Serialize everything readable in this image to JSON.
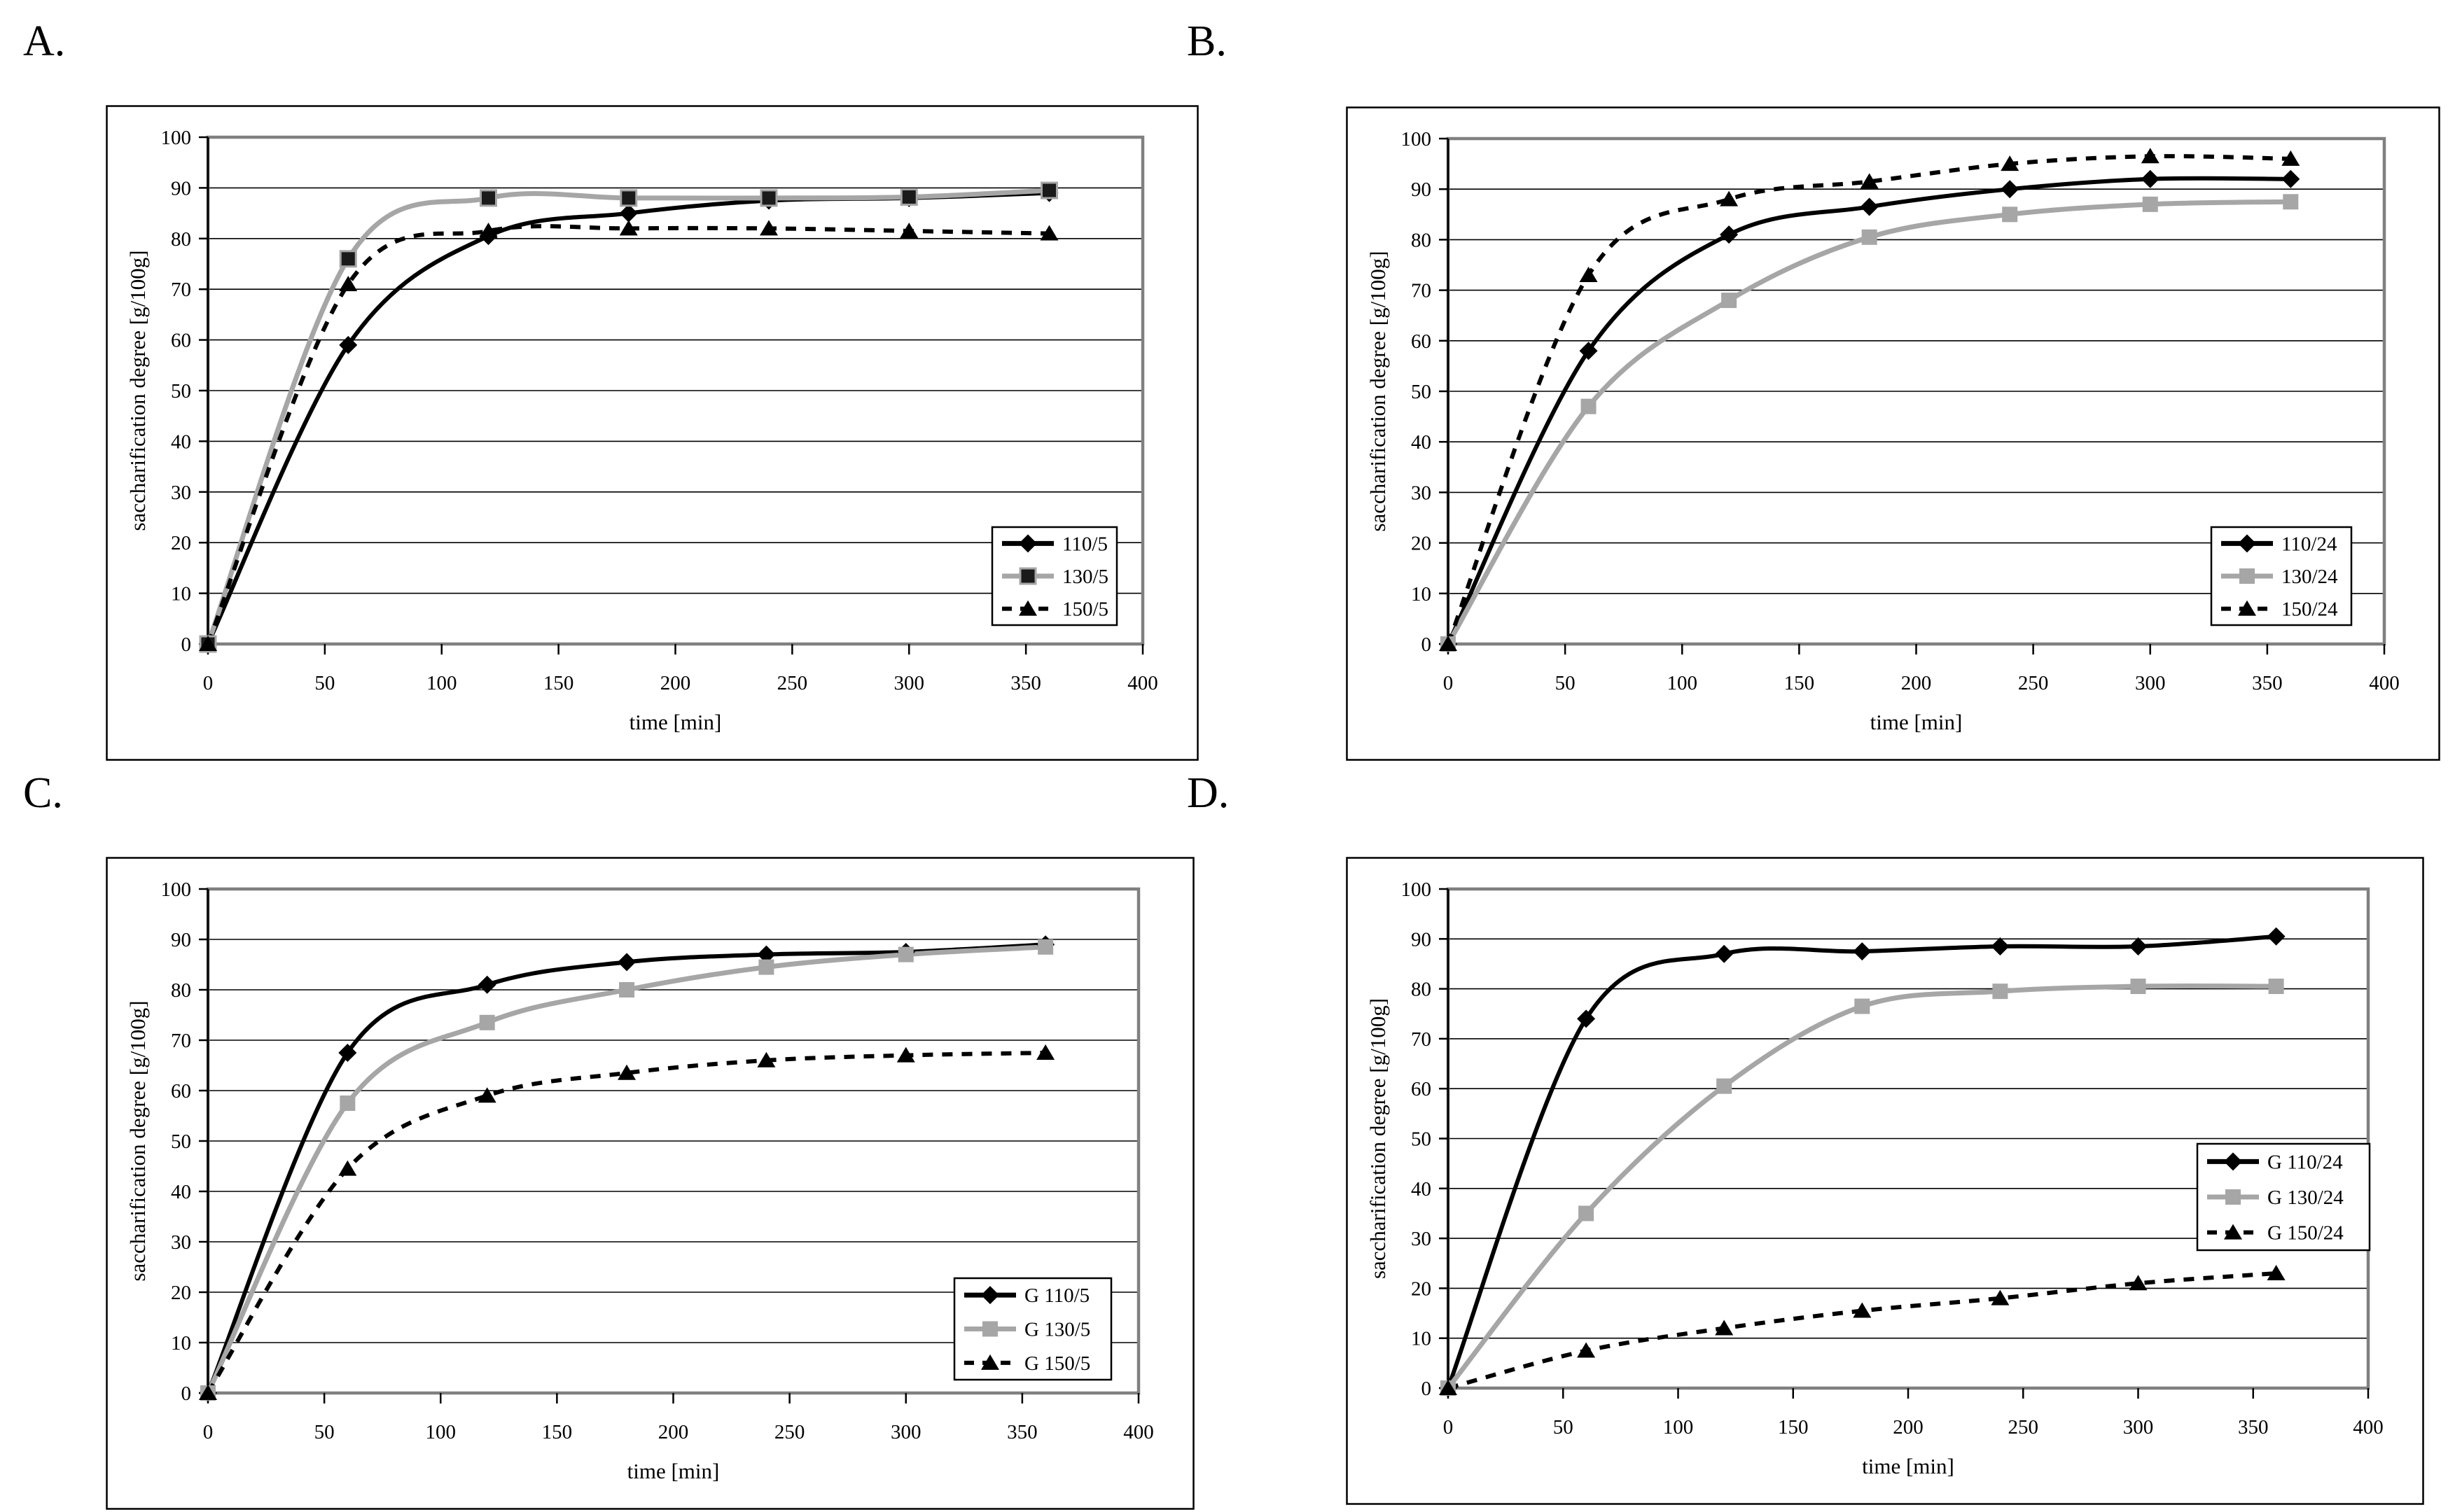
{
  "figure": {
    "background": "#ffffff",
    "colors": {
      "black": "#000000",
      "gray_line": "#a6a6a6",
      "plot_border": "#808080",
      "grid": "#000000"
    }
  },
  "chart_data": [
    {
      "panel_label": "A.",
      "type": "line",
      "xlabel": "time [min]",
      "ylabel": "saccharification degree [g/100g]",
      "x": [
        0,
        60,
        120,
        180,
        240,
        300,
        360
      ],
      "xlim": [
        0,
        400
      ],
      "ylim": [
        0,
        100
      ],
      "xticks": [
        0,
        50,
        100,
        150,
        200,
        250,
        300,
        350,
        400
      ],
      "yticks": [
        0,
        10,
        20,
        30,
        40,
        50,
        60,
        70,
        80,
        90,
        100
      ],
      "grid": "horizontal",
      "legend_position": "right-center",
      "series": [
        {
          "name": "110/5",
          "line": "solid",
          "color": "#000000",
          "marker": "diamond",
          "marker_fill": "#000000",
          "values": [
            0,
            59,
            80.5,
            85,
            87.5,
            88,
            89
          ]
        },
        {
          "name": "130/5",
          "line": "solid",
          "color": "#a6a6a6",
          "marker": "square",
          "marker_fill": "#1a1a1a",
          "marker_stroke": "#a6a6a6",
          "values": [
            0,
            76,
            88,
            88,
            88,
            88.2,
            89.5
          ]
        },
        {
          "name": "150/5",
          "line": "dashed",
          "color": "#000000",
          "marker": "triangle",
          "marker_fill": "#000000",
          "values": [
            0,
            71,
            81.5,
            82,
            82,
            81.5,
            81
          ]
        }
      ]
    },
    {
      "panel_label": "B.",
      "type": "line",
      "xlabel": "time [min]",
      "ylabel": "saccharification degree [g/100g]",
      "x": [
        0,
        60,
        120,
        180,
        240,
        300,
        360
      ],
      "xlim": [
        0,
        400
      ],
      "ylim": [
        0,
        100
      ],
      "xticks": [
        0,
        50,
        100,
        150,
        200,
        250,
        300,
        350,
        400
      ],
      "yticks": [
        0,
        10,
        20,
        30,
        40,
        50,
        60,
        70,
        80,
        90,
        100
      ],
      "grid": "horizontal",
      "legend_position": "right-center",
      "series": [
        {
          "name": "110/24",
          "line": "solid",
          "color": "#000000",
          "marker": "diamond",
          "marker_fill": "#000000",
          "values": [
            0,
            58,
            81,
            86.5,
            90,
            92,
            92
          ]
        },
        {
          "name": "130/24",
          "line": "solid",
          "color": "#a6a6a6",
          "marker": "square",
          "marker_fill": "#a6a6a6",
          "values": [
            0,
            47,
            68,
            80.5,
            85,
            87,
            87.5
          ]
        },
        {
          "name": "150/24",
          "line": "dashed",
          "color": "#000000",
          "marker": "triangle",
          "marker_fill": "#000000",
          "values": [
            0,
            73,
            88,
            91.5,
            95,
            96.5,
            96
          ]
        }
      ]
    },
    {
      "panel_label": "C.",
      "type": "line",
      "xlabel": "time [min]",
      "ylabel": "saccharification degree [g/100g]",
      "x": [
        0,
        60,
        120,
        180,
        240,
        300,
        360
      ],
      "xlim": [
        0,
        400
      ],
      "ylim": [
        0,
        100
      ],
      "xticks": [
        0,
        50,
        100,
        150,
        200,
        250,
        300,
        350,
        400
      ],
      "yticks": [
        0,
        10,
        20,
        30,
        40,
        50,
        60,
        70,
        80,
        90,
        100
      ],
      "grid": "horizontal",
      "legend_position": "bottom-right",
      "series": [
        {
          "name": "G 110/5",
          "line": "solid",
          "color": "#000000",
          "marker": "diamond",
          "marker_fill": "#000000",
          "values": [
            0,
            67.5,
            81,
            85.5,
            87,
            87.5,
            89
          ]
        },
        {
          "name": "G 130/5",
          "line": "solid",
          "color": "#a6a6a6",
          "marker": "square",
          "marker_fill": "#a6a6a6",
          "values": [
            0,
            57.5,
            73.5,
            80,
            84.5,
            87,
            88.5
          ]
        },
        {
          "name": "G 150/5",
          "line": "dashed",
          "color": "#000000",
          "marker": "triangle",
          "marker_fill": "#000000",
          "values": [
            0,
            44.5,
            59,
            63.5,
            66,
            67,
            67.5
          ]
        }
      ]
    },
    {
      "panel_label": "D.",
      "type": "line",
      "xlabel": "time [min]",
      "ylabel": "saccharification degree [g/100g]",
      "x": [
        0,
        60,
        120,
        180,
        240,
        300,
        360
      ],
      "xlim": [
        0,
        400
      ],
      "ylim": [
        0,
        100
      ],
      "xticks": [
        0,
        50,
        100,
        150,
        200,
        250,
        300,
        350,
        400
      ],
      "yticks": [
        0,
        10,
        20,
        30,
        40,
        50,
        60,
        70,
        80,
        90,
        100
      ],
      "grid": "horizontal",
      "legend_position": "right-middle",
      "series": [
        {
          "name": "G 110/24",
          "line": "solid",
          "color": "#000000",
          "marker": "diamond",
          "marker_fill": "#000000",
          "values": [
            0,
            74,
            87,
            87.5,
            88.5,
            88.5,
            90.5
          ]
        },
        {
          "name": "G 130/24",
          "line": "solid",
          "color": "#a6a6a6",
          "marker": "square",
          "marker_fill": "#a6a6a6",
          "values": [
            0,
            35,
            60.5,
            76.5,
            79.5,
            80.5,
            80.5
          ]
        },
        {
          "name": "G 150/24",
          "line": "dashed",
          "color": "#000000",
          "marker": "triangle",
          "marker_fill": "#000000",
          "values": [
            0,
            7.5,
            12,
            15.5,
            18,
            21,
            23
          ]
        }
      ]
    }
  ]
}
